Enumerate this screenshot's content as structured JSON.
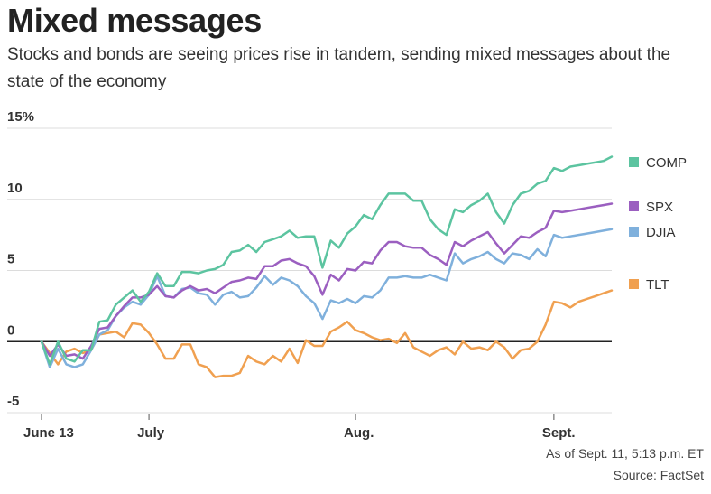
{
  "header": {
    "title": "Mixed messages",
    "subtitle": "Stocks and bonds are seeing prices rise in tandem, sending mixed messages about the state of the economy"
  },
  "footer": {
    "as_of": "As of Sept. 11, 5:13 p.m. ET",
    "source": "Source: FactSet"
  },
  "chart_data": {
    "type": "line",
    "title": "Mixed messages",
    "subtitle": "Stocks and bonds are seeing prices rise in tandem, sending mixed messages about the state of the economy",
    "xlabel": "",
    "ylabel": "",
    "ylim": [
      -5,
      15
    ],
    "yticks": [
      "15%",
      "10",
      "5",
      "0",
      "-5"
    ],
    "xticks": [
      "June 13",
      "July",
      "Aug.",
      "Sept."
    ],
    "xtick_index": [
      0,
      13,
      38,
      62
    ],
    "num_points": 70,
    "grid": true,
    "legend_placement": "right",
    "series": [
      {
        "name": "COMP",
        "color": "#5cc4a0",
        "values": [
          0,
          -1.6,
          0,
          -1.2,
          -1.4,
          -0.6,
          -0.6,
          1.4,
          1.5,
          2.6,
          3.1,
          3.6,
          2.8,
          3.5,
          4.8,
          3.9,
          3.9,
          4.9,
          4.9,
          4.8,
          5.0,
          5.1,
          5.4,
          6.3,
          6.4,
          6.8,
          6.3,
          7.0,
          7.2,
          7.4,
          7.8,
          7.3,
          7.4,
          7.4,
          5.2,
          7.1,
          6.6,
          7.6,
          8.1,
          8.9,
          8.6,
          9.6,
          10.4,
          10.4,
          10.4,
          9.9,
          9.9,
          8.6,
          7.9,
          7.5,
          9.3,
          9.1,
          9.6,
          9.9,
          10.4,
          9.1,
          8.3,
          9.6,
          10.4,
          10.6,
          11.1,
          11.3,
          12.2,
          12.0,
          12.3,
          12.4,
          12.5,
          12.6,
          12.7,
          13.0
        ]
      },
      {
        "name": "SPX",
        "color": "#9b5fc0",
        "values": [
          0,
          -1.0,
          -0.2,
          -1.0,
          -0.9,
          -1.2,
          -0.3,
          0.9,
          1.0,
          1.8,
          2.5,
          3.1,
          3.1,
          3.3,
          3.9,
          3.2,
          3.1,
          3.6,
          3.9,
          3.6,
          3.7,
          3.4,
          3.8,
          4.2,
          4.3,
          4.5,
          4.4,
          5.3,
          5.3,
          5.7,
          5.8,
          5.5,
          5.3,
          4.6,
          3.3,
          4.7,
          4.3,
          5.1,
          5.0,
          5.6,
          5.5,
          6.4,
          7.0,
          7.0,
          6.7,
          6.6,
          6.6,
          6.1,
          5.8,
          5.4,
          7.0,
          6.7,
          7.1,
          7.4,
          7.7,
          6.9,
          6.2,
          6.8,
          7.4,
          7.3,
          7.7,
          8.0,
          9.2,
          9.1,
          9.2,
          9.3,
          9.4,
          9.5,
          9.6,
          9.7
        ]
      },
      {
        "name": "DJIA",
        "color": "#7fb0dc",
        "values": [
          0,
          -1.8,
          -0.5,
          -1.6,
          -1.8,
          -1.6,
          -0.6,
          0.5,
          0.8,
          1.8,
          2.4,
          2.8,
          2.6,
          3.3,
          4.6,
          3.2,
          3.1,
          3.7,
          3.8,
          3.4,
          3.3,
          2.6,
          3.3,
          3.5,
          3.1,
          3.2,
          3.8,
          4.6,
          4.0,
          4.5,
          4.3,
          3.9,
          3.2,
          2.7,
          1.6,
          2.9,
          2.7,
          3.0,
          2.7,
          3.2,
          3.1,
          3.6,
          4.5,
          4.5,
          4.6,
          4.5,
          4.5,
          4.7,
          4.5,
          4.3,
          6.2,
          5.5,
          5.8,
          6.0,
          6.3,
          5.8,
          5.5,
          6.2,
          6.1,
          5.8,
          6.5,
          6.0,
          7.5,
          7.3,
          7.4,
          7.5,
          7.6,
          7.7,
          7.8,
          7.9
        ]
      },
      {
        "name": "TLT",
        "color": "#f0a050",
        "values": [
          0,
          -0.8,
          -1.6,
          -0.7,
          -0.5,
          -0.8,
          -0.6,
          0.5,
          0.6,
          0.7,
          0.3,
          1.3,
          1.2,
          0.6,
          -0.2,
          -1.2,
          -1.2,
          -0.2,
          -0.2,
          -1.6,
          -1.8,
          -2.5,
          -2.4,
          -2.4,
          -2.2,
          -1.0,
          -1.4,
          -1.6,
          -1.0,
          -1.4,
          -0.5,
          -1.5,
          0.1,
          -0.3,
          -0.3,
          0.7,
          1.0,
          1.4,
          0.8,
          0.6,
          0.3,
          0.1,
          0.2,
          -0.1,
          0.6,
          -0.4,
          -0.7,
          -1.0,
          -0.6,
          -0.4,
          -0.9,
          0.0,
          -0.5,
          -0.4,
          -0.6,
          0.0,
          -0.4,
          -1.2,
          -0.6,
          -0.5,
          0.0,
          1.2,
          2.8,
          2.7,
          2.4,
          2.8,
          3.0,
          3.2,
          3.4,
          3.6
        ]
      }
    ]
  }
}
